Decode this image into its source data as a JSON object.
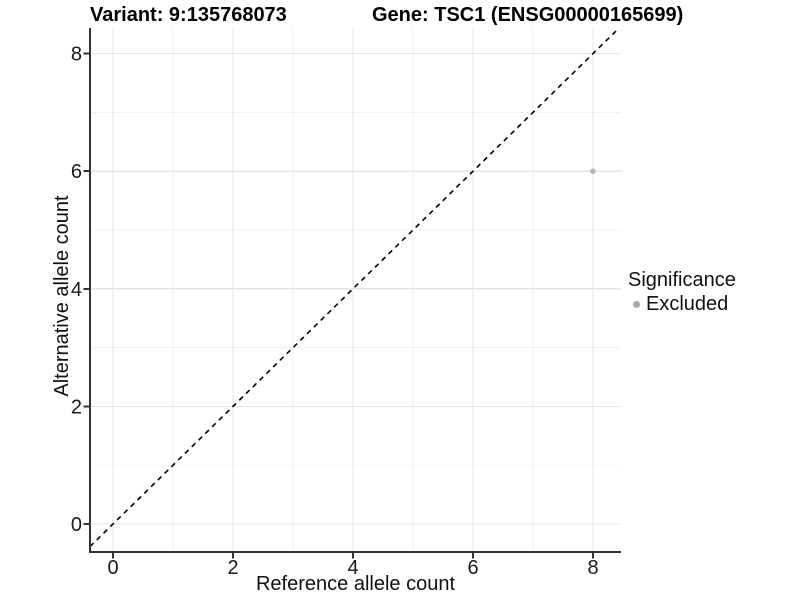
{
  "figure": {
    "variant_title": "Variant: 9:135768073",
    "gene_title": "Gene: TSC1 (ENSG00000165699)"
  },
  "axes": {
    "x": {
      "title": "Reference allele count"
    },
    "y": {
      "title": "Alternative allele count"
    }
  },
  "legend": {
    "title": "Significance",
    "items": [
      {
        "label": "Excluded",
        "color": "#aaaaaa"
      }
    ]
  },
  "chart_data": {
    "type": "scatter",
    "title": "Variant: 9:135768073 — Gene: TSC1 (ENSG00000165699)",
    "xlabel": "Reference allele count",
    "ylabel": "Alternative allele count",
    "x_ticks": [
      0,
      2,
      4,
      6,
      8
    ],
    "y_ticks": [
      0,
      2,
      4,
      6,
      8
    ],
    "x_minor_ticks": [
      1,
      3,
      5,
      7
    ],
    "y_minor_ticks": [
      1,
      3,
      5,
      7
    ],
    "xlim": [
      -0.4,
      8.45
    ],
    "ylim": [
      -0.45,
      8.45
    ],
    "grid": "major-and-minor",
    "legend_position": "right",
    "series": [
      {
        "name": "Excluded",
        "color": "#b5b5b5",
        "points": [
          {
            "x": 8,
            "y": 6
          }
        ]
      }
    ],
    "reference_line": {
      "type": "identity",
      "slope": 1,
      "intercept": 0,
      "style": "dashed",
      "color": "#000000"
    }
  },
  "colors": {
    "background": "#ffffff",
    "grid_major": "#e5e5e5",
    "grid_minor": "#f0f0f0",
    "axis_line": "#333333",
    "tick_mark": "#333333",
    "tick_text": "#1a1a1a",
    "point": "#b5b5b5"
  }
}
